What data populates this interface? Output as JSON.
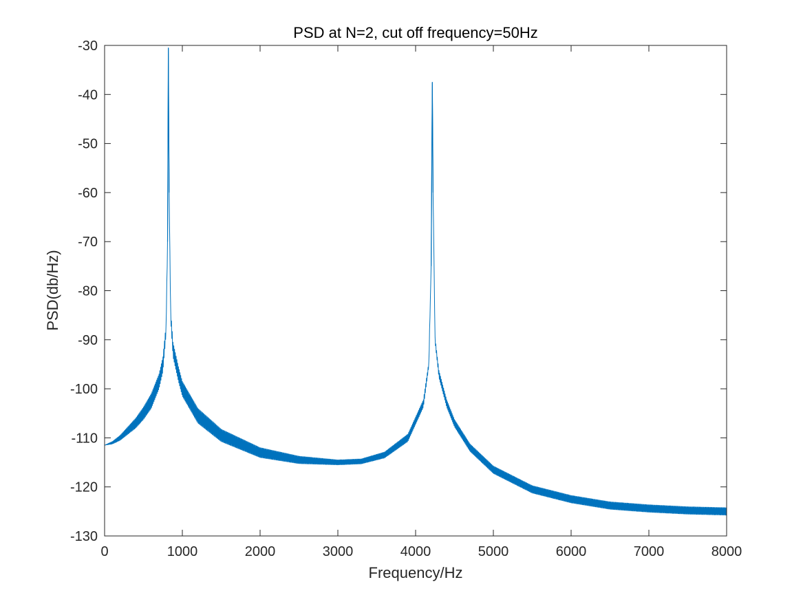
{
  "chart_data": {
    "type": "line",
    "title": "PSD at N=2, cut off frequency=50Hz",
    "xlabel": "Frequency/Hz",
    "ylabel": "PSD(db/Hz)",
    "xlim": [
      0,
      8000
    ],
    "ylim": [
      -130,
      -30
    ],
    "xticks": [
      0,
      1000,
      2000,
      3000,
      4000,
      5000,
      6000,
      7000,
      8000
    ],
    "yticks": [
      -30,
      -40,
      -50,
      -60,
      -70,
      -80,
      -90,
      -100,
      -110,
      -120,
      -130
    ],
    "grid": false,
    "legend": "none",
    "series": [
      {
        "color": "#0072BD",
        "x": [
          0,
          100,
          200,
          300,
          400,
          500,
          600,
          700,
          750,
          790,
          810,
          820,
          830,
          850,
          880,
          950,
          1000,
          1200,
          1500,
          2000,
          2500,
          3000,
          3300,
          3600,
          3900,
          4100,
          4170,
          4200,
          4215,
          4225,
          4250,
          4300,
          4400,
          4500,
          4700,
          5000,
          5500,
          6000,
          6500,
          7000,
          7500,
          8000
        ],
        "y": [
          -111.5,
          -111.0,
          -110.0,
          -108.5,
          -107.0,
          -105.0,
          -102.5,
          -98.5,
          -95.0,
          -88.0,
          -70.0,
          -30.5,
          -60.0,
          -85.0,
          -92.0,
          -97.0,
          -100.0,
          -105.5,
          -109.5,
          -113.0,
          -114.5,
          -115.0,
          -114.8,
          -113.5,
          -110.0,
          -103.0,
          -95.0,
          -75.0,
          -37.5,
          -60.0,
          -90.0,
          -97.0,
          -103.0,
          -107.0,
          -112.0,
          -116.5,
          -120.5,
          -122.5,
          -123.8,
          -124.4,
          -124.8,
          -125.0
        ],
        "band": [
          0,
          0.5,
          1.0,
          1.5,
          2.0,
          2.5,
          3.0,
          3.0,
          3.0,
          2.0,
          1.0,
          0,
          1.0,
          2.0,
          3.0,
          3.0,
          3.0,
          3.0,
          2.5,
          2.0,
          1.5,
          1.0,
          1.0,
          1.2,
          1.5,
          1.5,
          1.0,
          0.5,
          0,
          0.5,
          1.0,
          1.5,
          1.5,
          1.5,
          1.5,
          1.5,
          1.5,
          1.5,
          1.5,
          1.5,
          1.5,
          1.5
        ]
      }
    ]
  }
}
